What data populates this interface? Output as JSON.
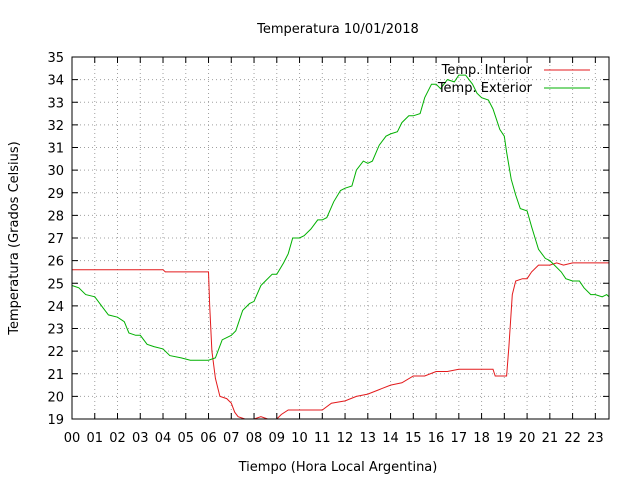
{
  "chart_data": {
    "type": "line",
    "title": "Temperatura 10/01/2018",
    "xlabel": "Tiempo (Hora Local Argentina)",
    "ylabel": "Temperatura (Grados Celsius)",
    "xlim": [
      0,
      23.6
    ],
    "ylim": [
      19,
      35
    ],
    "x_ticks": [
      "00",
      "01",
      "02",
      "03",
      "04",
      "05",
      "06",
      "07",
      "08",
      "09",
      "10",
      "11",
      "12",
      "13",
      "14",
      "15",
      "16",
      "17",
      "18",
      "19",
      "20",
      "21",
      "22",
      "23"
    ],
    "y_ticks": [
      "19",
      "20",
      "21",
      "22",
      "23",
      "24",
      "25",
      "26",
      "27",
      "28",
      "29",
      "30",
      "31",
      "32",
      "33",
      "34",
      "35"
    ],
    "grid": true,
    "legend_position": "top-right",
    "series": [
      {
        "name": "Temp. Interior",
        "color": "#e31a1c",
        "points": [
          [
            0,
            25.6
          ],
          [
            1,
            25.6
          ],
          [
            2,
            25.6
          ],
          [
            3,
            25.6
          ],
          [
            4,
            25.6
          ],
          [
            4.1,
            25.5
          ],
          [
            5,
            25.5
          ],
          [
            6.0,
            25.5
          ],
          [
            6.05,
            24.0
          ],
          [
            6.15,
            22.0
          ],
          [
            6.3,
            20.8
          ],
          [
            6.5,
            20.0
          ],
          [
            6.8,
            19.9
          ],
          [
            7.0,
            19.7
          ],
          [
            7.15,
            19.3
          ],
          [
            7.3,
            19.1
          ],
          [
            7.6,
            19.0
          ],
          [
            8.0,
            19.0
          ],
          [
            8.3,
            19.1
          ],
          [
            8.6,
            19.0
          ],
          [
            9.0,
            19.0
          ],
          [
            9.2,
            19.2
          ],
          [
            9.5,
            19.4
          ],
          [
            10.0,
            19.4
          ],
          [
            11.0,
            19.4
          ],
          [
            11.4,
            19.7
          ],
          [
            12.0,
            19.8
          ],
          [
            12.5,
            20.0
          ],
          [
            13.0,
            20.1
          ],
          [
            13.5,
            20.3
          ],
          [
            14.0,
            20.5
          ],
          [
            14.5,
            20.6
          ],
          [
            15.0,
            20.9
          ],
          [
            15.5,
            20.9
          ],
          [
            16.0,
            21.1
          ],
          [
            16.5,
            21.1
          ],
          [
            17.0,
            21.2
          ],
          [
            17.5,
            21.2
          ],
          [
            18.0,
            21.2
          ],
          [
            18.5,
            21.2
          ],
          [
            18.6,
            20.9
          ],
          [
            19.0,
            20.9
          ],
          [
            19.1,
            20.9
          ],
          [
            19.2,
            22.2
          ],
          [
            19.35,
            24.5
          ],
          [
            19.5,
            25.1
          ],
          [
            19.8,
            25.2
          ],
          [
            20.0,
            25.2
          ],
          [
            20.2,
            25.5
          ],
          [
            20.5,
            25.8
          ],
          [
            21.0,
            25.8
          ],
          [
            21.3,
            25.9
          ],
          [
            21.6,
            25.8
          ],
          [
            22.0,
            25.9
          ],
          [
            23.0,
            25.9
          ],
          [
            23.6,
            25.9
          ]
        ]
      },
      {
        "name": "Temp. Exterior",
        "color": "#00b000",
        "points": [
          [
            0,
            24.9
          ],
          [
            0.3,
            24.8
          ],
          [
            0.6,
            24.5
          ],
          [
            1.0,
            24.4
          ],
          [
            1.3,
            24.0
          ],
          [
            1.6,
            23.6
          ],
          [
            2.0,
            23.5
          ],
          [
            2.3,
            23.3
          ],
          [
            2.5,
            22.8
          ],
          [
            2.8,
            22.7
          ],
          [
            3.0,
            22.7
          ],
          [
            3.3,
            22.3
          ],
          [
            3.6,
            22.2
          ],
          [
            4.0,
            22.1
          ],
          [
            4.3,
            21.8
          ],
          [
            4.8,
            21.7
          ],
          [
            5.2,
            21.6
          ],
          [
            5.6,
            21.6
          ],
          [
            6.0,
            21.6
          ],
          [
            6.3,
            21.7
          ],
          [
            6.6,
            22.5
          ],
          [
            7.0,
            22.7
          ],
          [
            7.2,
            22.9
          ],
          [
            7.5,
            23.8
          ],
          [
            7.8,
            24.1
          ],
          [
            8.0,
            24.2
          ],
          [
            8.3,
            24.9
          ],
          [
            8.5,
            25.1
          ],
          [
            8.8,
            25.4
          ],
          [
            9.0,
            25.4
          ],
          [
            9.3,
            25.9
          ],
          [
            9.5,
            26.3
          ],
          [
            9.7,
            27.0
          ],
          [
            10.0,
            27.0
          ],
          [
            10.2,
            27.1
          ],
          [
            10.5,
            27.4
          ],
          [
            10.8,
            27.8
          ],
          [
            11.0,
            27.8
          ],
          [
            11.2,
            27.9
          ],
          [
            11.5,
            28.6
          ],
          [
            11.8,
            29.1
          ],
          [
            12.0,
            29.2
          ],
          [
            12.3,
            29.3
          ],
          [
            12.5,
            30.0
          ],
          [
            12.8,
            30.4
          ],
          [
            13.0,
            30.3
          ],
          [
            13.2,
            30.4
          ],
          [
            13.5,
            31.1
          ],
          [
            13.8,
            31.5
          ],
          [
            14.0,
            31.6
          ],
          [
            14.3,
            31.7
          ],
          [
            14.5,
            32.1
          ],
          [
            14.8,
            32.4
          ],
          [
            15.0,
            32.4
          ],
          [
            15.3,
            32.5
          ],
          [
            15.5,
            33.2
          ],
          [
            15.8,
            33.8
          ],
          [
            16.0,
            33.8
          ],
          [
            16.2,
            33.6
          ],
          [
            16.5,
            34.0
          ],
          [
            16.8,
            33.9
          ],
          [
            17.0,
            34.2
          ],
          [
            17.3,
            34.2
          ],
          [
            17.6,
            33.8
          ],
          [
            17.8,
            33.4
          ],
          [
            18.0,
            33.2
          ],
          [
            18.3,
            33.1
          ],
          [
            18.5,
            32.7
          ],
          [
            18.8,
            31.8
          ],
          [
            19.0,
            31.5
          ],
          [
            19.1,
            30.8
          ],
          [
            19.3,
            29.6
          ],
          [
            19.5,
            28.9
          ],
          [
            19.7,
            28.3
          ],
          [
            20.0,
            28.2
          ],
          [
            20.2,
            27.5
          ],
          [
            20.5,
            26.5
          ],
          [
            20.8,
            26.1
          ],
          [
            21.0,
            26.0
          ],
          [
            21.2,
            25.8
          ],
          [
            21.5,
            25.5
          ],
          [
            21.7,
            25.2
          ],
          [
            22.0,
            25.1
          ],
          [
            22.3,
            25.1
          ],
          [
            22.5,
            24.8
          ],
          [
            22.8,
            24.5
          ],
          [
            23.0,
            24.5
          ],
          [
            23.3,
            24.4
          ],
          [
            23.5,
            24.5
          ],
          [
            23.6,
            24.4
          ]
        ]
      }
    ]
  }
}
